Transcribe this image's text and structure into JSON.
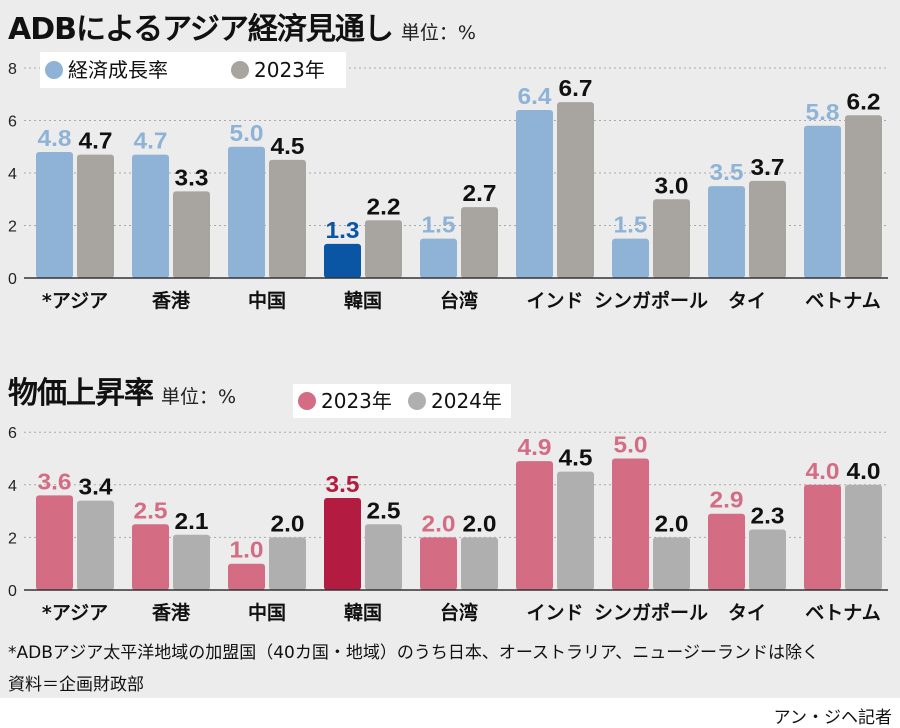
{
  "chart_data": [
    {
      "type": "bar",
      "title": "ADBによるアジア経済見通し",
      "unit_label": "単位：%",
      "categories": [
        "*アジア",
        "香港",
        "中国",
        "韓国",
        "台湾",
        "インド",
        "シンガポール",
        "タイ",
        "ベトナム"
      ],
      "series": [
        {
          "name": "経済成長率",
          "values": [
            4.8,
            4.7,
            5.0,
            1.3,
            1.5,
            6.4,
            1.5,
            3.5,
            5.8
          ],
          "color": "#8fb3d6",
          "label_color": "#8fb3d6"
        },
        {
          "name": "2023年",
          "values": [
            4.7,
            3.3,
            4.5,
            2.2,
            2.7,
            6.7,
            3.0,
            3.7,
            6.2
          ],
          "color": "#a8a4a0",
          "label_color": "#111111"
        }
      ],
      "highlight": {
        "category": "韓国",
        "color": "#0b56a4"
      },
      "yticks": [
        0,
        2,
        4,
        6,
        8
      ],
      "ylim": [
        0,
        8
      ],
      "grid": true,
      "legend": "top-left"
    },
    {
      "type": "bar",
      "title": "物価上昇率",
      "unit_label": "単位：%",
      "categories": [
        "*アジア",
        "香港",
        "中国",
        "韓国",
        "台湾",
        "インド",
        "シンガポール",
        "タイ",
        "ベトナム"
      ],
      "series": [
        {
          "name": "2023年",
          "values": [
            3.6,
            2.5,
            1.0,
            3.5,
            2.0,
            4.9,
            5.0,
            2.9,
            4.0
          ],
          "color": "#d46c84",
          "label_color": "#d46c84"
        },
        {
          "name": "2024年",
          "values": [
            3.4,
            2.1,
            2.0,
            2.5,
            2.0,
            4.5,
            2.0,
            2.3,
            4.0
          ],
          "color": "#afafaf",
          "label_color": "#111111"
        }
      ],
      "highlight": {
        "category": "韓国",
        "color": "#b31b40"
      },
      "yticks": [
        0,
        2,
        4,
        6
      ],
      "ylim": [
        0,
        6
      ],
      "grid": true,
      "legend": "top"
    }
  ],
  "footnote": "*ADBアジア太平洋地域の加盟国（40カ国・地域）のうち日本、オーストラリア、ニュージーランドは除く",
  "source": "資料＝企画財政部",
  "credit": "アン・ジヘ記者"
}
